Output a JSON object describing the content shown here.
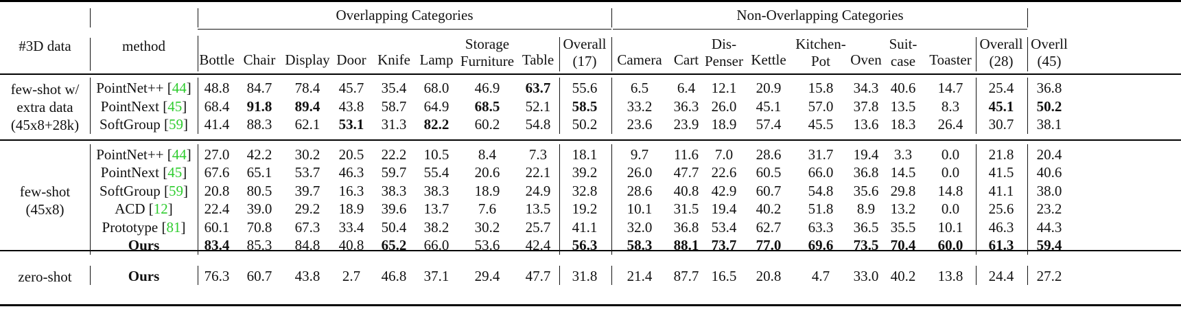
{
  "table": {
    "group_headers": {
      "overlapping": "Overlapping Categories",
      "non_overlapping": "Non-Overlapping Categories"
    },
    "columns": {
      "data": "#3D data",
      "method": "method",
      "overlapping": [
        "Bottle",
        "Chair",
        "Display",
        "Door",
        "Knife",
        "Lamp",
        "Storage Furniture",
        "Table"
      ],
      "overall17": "Overall (17)",
      "non_overlapping": [
        "Camera",
        "Cart",
        "Dis- Penser",
        "Kettle",
        "Kitchen- Pot",
        "Oven",
        "Suit- case",
        "Toaster"
      ],
      "overall28": "Overall (28)",
      "overall45": "Overll (45)"
    },
    "header_lines": {
      "storage": [
        "Storage",
        "Furniture"
      ],
      "overall17": [
        "Overall",
        "(17)"
      ],
      "dispenser": [
        "Dis-",
        "Penser"
      ],
      "kitchenpot": [
        "Kitchen-",
        "Pot"
      ],
      "suitcase": [
        "Suit-",
        "case"
      ],
      "overall28": [
        "Overall",
        "(28)"
      ],
      "overall45": [
        "Overll",
        "(45)"
      ]
    },
    "groups": [
      {
        "label": [
          "few-shot w/",
          "extra data",
          "(45x8+28k)"
        ],
        "rows": [
          {
            "method": "PointNet++",
            "cite": "44",
            "bold_method": false,
            "values": [
              "48.8",
              "84.7",
              "78.4",
              "45.7",
              "35.4",
              "68.0",
              "46.9",
              "63.7",
              "55.6",
              "6.5",
              "6.4",
              "12.1",
              "20.9",
              "15.8",
              "34.3",
              "40.6",
              "14.7",
              "25.4",
              "36.8"
            ],
            "bold": [
              7
            ]
          },
          {
            "method": "PointNext",
            "cite": "45",
            "bold_method": false,
            "values": [
              "68.4",
              "91.8",
              "89.4",
              "43.8",
              "58.7",
              "64.9",
              "68.5",
              "52.1",
              "58.5",
              "33.2",
              "36.3",
              "26.0",
              "45.1",
              "57.0",
              "37.8",
              "13.5",
              "8.3",
              "45.1",
              "50.2"
            ],
            "bold": [
              1,
              2,
              6,
              8,
              17,
              18
            ]
          },
          {
            "method": "SoftGroup",
            "cite": "59",
            "bold_method": false,
            "values": [
              "41.4",
              "88.3",
              "62.1",
              "53.1",
              "31.3",
              "82.2",
              "60.2",
              "54.8",
              "50.2",
              "23.6",
              "23.9",
              "18.9",
              "57.4",
              "45.5",
              "13.6",
              "18.3",
              "26.4",
              "30.7",
              "38.1"
            ],
            "bold": [
              3,
              5
            ]
          }
        ]
      },
      {
        "label": [
          "few-shot",
          "(45x8)"
        ],
        "rows": [
          {
            "method": "PointNet++",
            "cite": "44",
            "bold_method": false,
            "values": [
              "27.0",
              "42.2",
              "30.2",
              "20.5",
              "22.2",
              "10.5",
              "8.4",
              "7.3",
              "18.1",
              "9.7",
              "11.6",
              "7.0",
              "28.6",
              "31.7",
              "19.4",
              "3.3",
              "0.0",
              "21.8",
              "20.4"
            ],
            "bold": []
          },
          {
            "method": "PointNext",
            "cite": "45",
            "bold_method": false,
            "values": [
              "67.6",
              "65.1",
              "53.7",
              "46.3",
              "59.7",
              "55.4",
              "20.6",
              "22.1",
              "39.2",
              "26.0",
              "47.7",
              "22.6",
              "60.5",
              "66.0",
              "36.8",
              "14.5",
              "0.0",
              "41.5",
              "40.6"
            ],
            "bold": []
          },
          {
            "method": "SoftGroup",
            "cite": "59",
            "bold_method": false,
            "values": [
              "20.8",
              "80.5",
              "39.7",
              "16.3",
              "38.3",
              "38.3",
              "18.9",
              "24.9",
              "32.8",
              "28.6",
              "40.8",
              "42.9",
              "60.7",
              "54.8",
              "35.6",
              "29.8",
              "14.8",
              "41.1",
              "38.0"
            ],
            "bold": []
          },
          {
            "method": "ACD",
            "cite": "12",
            "bold_method": false,
            "values": [
              "22.4",
              "39.0",
              "29.2",
              "18.9",
              "39.6",
              "13.7",
              "7.6",
              "13.5",
              "19.2",
              "10.1",
              "31.5",
              "19.4",
              "40.2",
              "51.8",
              "8.9",
              "13.2",
              "0.0",
              "25.6",
              "23.2"
            ],
            "bold": []
          },
          {
            "method": "Prototype",
            "cite": "81",
            "bold_method": false,
            "values": [
              "60.1",
              "70.8",
              "67.3",
              "33.4",
              "50.4",
              "38.2",
              "30.2",
              "25.7",
              "41.1",
              "32.0",
              "36.8",
              "53.4",
              "62.7",
              "63.3",
              "36.5",
              "35.5",
              "10.1",
              "46.3",
              "44.3"
            ],
            "bold": []
          },
          {
            "method": "Ours",
            "cite": "",
            "bold_method": true,
            "values": [
              "83.4",
              "85.3",
              "84.8",
              "40.8",
              "65.2",
              "66.0",
              "53.6",
              "42.4",
              "56.3",
              "58.3",
              "88.1",
              "73.7",
              "77.0",
              "69.6",
              "73.5",
              "70.4",
              "60.0",
              "61.3",
              "59.4"
            ],
            "bold": [
              0,
              4,
              8,
              9,
              10,
              11,
              12,
              13,
              14,
              15,
              16,
              17,
              18
            ]
          }
        ]
      },
      {
        "label": [
          "zero-shot"
        ],
        "rows": [
          {
            "method": "Ours",
            "cite": "",
            "bold_method": true,
            "values": [
              "76.3",
              "60.7",
              "43.8",
              "2.7",
              "46.8",
              "37.1",
              "29.4",
              "47.7",
              "31.8",
              "21.4",
              "87.7",
              "16.5",
              "20.8",
              "4.7",
              "33.0",
              "40.2",
              "13.8",
              "24.4",
              "27.2"
            ],
            "bold": []
          }
        ]
      }
    ],
    "colors": {
      "citation": "#2ecc2e",
      "text": "#111111"
    }
  }
}
